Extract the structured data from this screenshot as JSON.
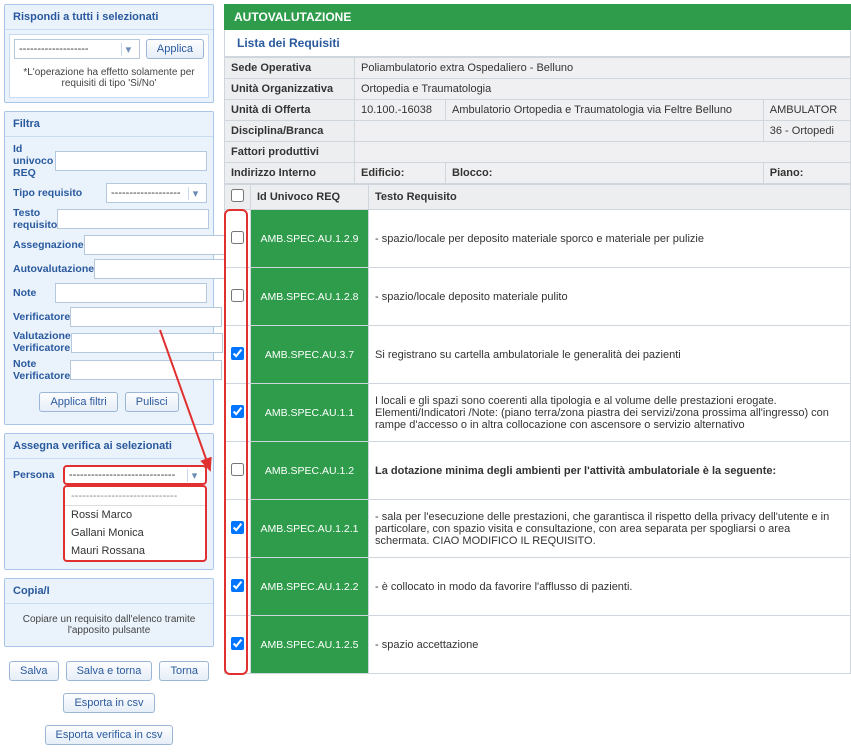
{
  "colors": {
    "green": "#2e9c4a",
    "panelBorder": "#a9c6e8",
    "panelBg": "#eaf2fb",
    "link": "#2a5a9e",
    "red": "#e03030"
  },
  "respond": {
    "title": "Rispondi a tutti i selezionati",
    "select_placeholder": "-------------------",
    "apply_label": "Applica",
    "note": "*L'operazione ha effetto solamente per requisiti di tipo 'Si/No'"
  },
  "filter": {
    "title": "Filtra",
    "fields": {
      "id": "Id univoco REQ",
      "tipo": "Tipo requisito",
      "testo": "Testo requisito",
      "assegn": "Assegnazione",
      "autoval": "Autovalutazione",
      "note": "Note",
      "verif": "Verificatore",
      "valverif": "Valutazione Verificatore",
      "noteverif": "Note Verificatore"
    },
    "tipo_placeholder": "-------------------",
    "apply_label": "Applica filtri",
    "clear_label": "Pulisci"
  },
  "assign": {
    "title": "Assegna verifica ai selezionati",
    "persona_label": "Persona",
    "persona_placeholder": "-----------------------------",
    "options": [
      "-----------------------------",
      "Rossi Marco",
      "Gallani Monica",
      "Mauri Rossana"
    ]
  },
  "copy": {
    "title_prefix": "Copia/I",
    "note": "Copiare un requisito dall'elenco tramite l'apposito pulsante  "
  },
  "actions": {
    "salva": "Salva",
    "salva_torna": "Salva e torna",
    "torna": "Torna",
    "export_csv": "Esporta in csv",
    "export_verifica": "Esporta verifica in csv"
  },
  "main": {
    "title": "AUTOVALUTAZIONE",
    "subtitle": "Lista dei Requisiti",
    "info": {
      "sede_label": "Sede Operativa",
      "sede_val": "Poliambulatorio extra Ospedaliero - Belluno",
      "unita_org_label": "Unità Organizzativa",
      "unita_org_val": "Ortopedia e Traumatologia",
      "unita_off_label": "Unità di Offerta",
      "unita_off_code": "10.100.-16038",
      "unita_off_val": "Ambulatorio Ortopedia e Traumatologia via Feltre Belluno",
      "unita_off_extra": "AMBULATOR",
      "disc_label": "Disciplina/Branca",
      "disc_val": "36 - Ortopedi",
      "fattori_label": "Fattori produttivi",
      "ind_label": "Indirizzo Interno",
      "edificio_label": "Edificio:",
      "blocco_label": "Blocco:",
      "piano_label": "Piano:"
    },
    "columns": {
      "id": "Id Univoco REQ",
      "testo": "Testo Requisito"
    },
    "rows": [
      {
        "checked": false,
        "code": "AMB.SPEC.AU.1.2.9",
        "text": "- spazio/locale per deposito materiale sporco e materiale per pulizie",
        "bold": false
      },
      {
        "checked": false,
        "code": "AMB.SPEC.AU.1.2.8",
        "text": "- spazio/locale deposito materiale pulito",
        "bold": false
      },
      {
        "checked": true,
        "code": "AMB.SPEC.AU.3.7",
        "text": "Si registrano su cartella ambulatoriale le generalità dei pazienti",
        "bold": false
      },
      {
        "checked": true,
        "code": "AMB.SPEC.AU.1.1",
        "text": "I locali e gli spazi sono coerenti alla tipologia e al volume delle prestazioni erogate. Elementi/Indicatori /Note: (piano terra/zona piastra dei servizi/zona prossima all'ingresso) con rampe d'accesso o in altra collocazione con ascensore o servizio alternativo",
        "bold": false
      },
      {
        "checked": false,
        "code": "AMB.SPEC.AU.1.2",
        "text": "La dotazione minima degli ambienti per l'attività ambulatoriale è la seguente:",
        "bold": true
      },
      {
        "checked": true,
        "code": "AMB.SPEC.AU.1.2.1",
        "text": "- sala per l'esecuzione delle prestazioni, che garantisca il rispetto della privacy dell'utente e in particolare, con spazio visita e consultazione, con area separata per spogliarsi o area schermata. CIAO MODIFICO IL REQUISITO.",
        "bold": false
      },
      {
        "checked": true,
        "code": "AMB.SPEC.AU.1.2.2",
        "text": "- è collocato in modo da favorire l'afflusso di pazienti.",
        "bold": false
      },
      {
        "checked": true,
        "code": "AMB.SPEC.AU.1.2.5",
        "text": "- spazio accettazione",
        "bold": false
      }
    ]
  }
}
